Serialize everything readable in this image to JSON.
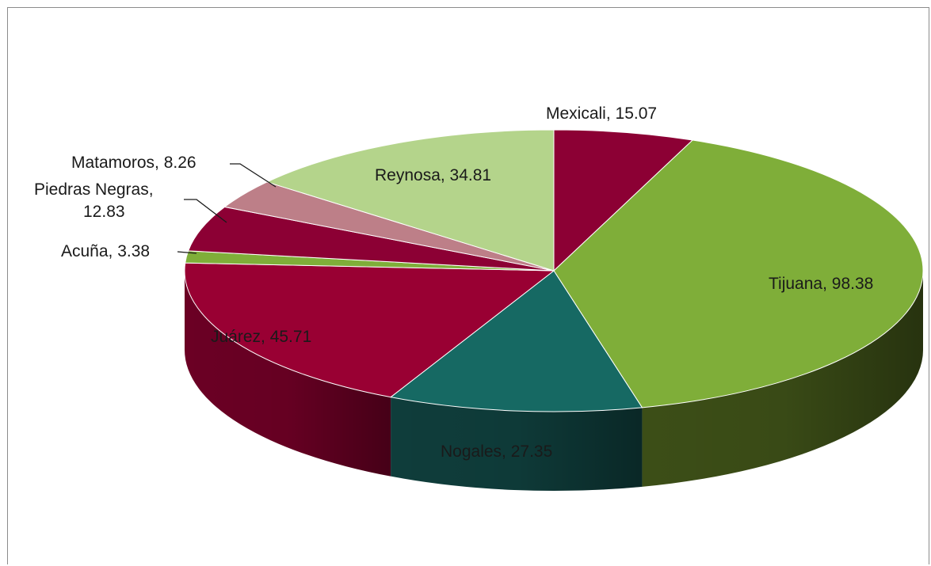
{
  "chart_data": {
    "type": "pie",
    "style": "3d",
    "legend": "none",
    "slices": [
      {
        "label": "Mexicali",
        "value": 15.07,
        "color": "#8c0034",
        "sideColor": "#5c0022"
      },
      {
        "label": "Tijuana",
        "value": 98.38,
        "color": "#7fae39",
        "sideColor": "#3c4e17"
      },
      {
        "label": "Nogales",
        "value": 27.35,
        "color": "#166963",
        "sideColor": "#0f3d3b"
      },
      {
        "label": "Juárez",
        "value": 45.71,
        "color": "#990033",
        "sideColor": "#6b0024"
      },
      {
        "label": "Acuña",
        "value": 3.38,
        "color": "#7fae39",
        "sideColor": "#4c6b22"
      },
      {
        "label": "Piedras Negras",
        "value": 12.83,
        "color": "#8c0034",
        "sideColor": "#5c0022"
      },
      {
        "label": "Matamoros",
        "value": 8.26,
        "color": "#bd7f88",
        "sideColor": "#8a5a60"
      },
      {
        "label": "Reynosa",
        "value": 34.81,
        "color": "#b4d48b",
        "sideColor": "#8aa56a"
      }
    ],
    "labels": {
      "mexicali": "Mexicali, 15.07",
      "tijuana": "Tijuana, 98.38",
      "nogales": "Nogales, 27.35",
      "juarez": "Juárez, 45.71",
      "acuna": "Acuña, 3.38",
      "piedras_negras_1": "Piedras Negras,",
      "piedras_negras_2": "12.83",
      "matamoros": "Matamoros, 8.26",
      "reynosa": "Reynosa, 34.81"
    }
  }
}
